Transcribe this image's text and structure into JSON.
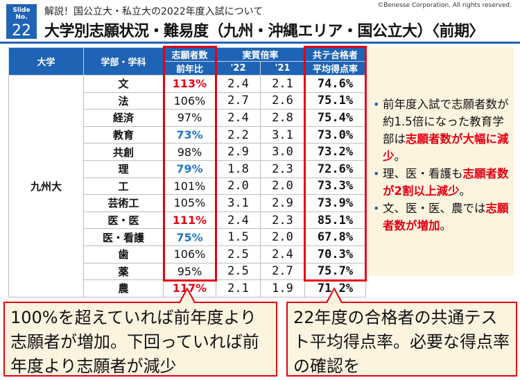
{
  "header": {
    "badge_label": "Slide No.",
    "badge_number": "22",
    "subtitle": "解説！国公立大・私立大の2022年度入試について",
    "title": "大学別志願状況・難易度（九州・沖縄エリア・国公立大）〈前期〉",
    "copyright": "©Benesse Corporation. All rights reserved.",
    "accent_color": "#1f63b5"
  },
  "table": {
    "headers": {
      "university": "大学",
      "faculty": "学部・学科",
      "applicants_top": "志願者数",
      "applicants_bottom": "前年比",
      "ratio": "実質倍率",
      "ratio_22": "'22",
      "ratio_21": "'21",
      "avg_top": "共テ合格者",
      "avg_bottom": "平均得点率"
    },
    "university": "九州大",
    "rows": [
      {
        "faculty": "文",
        "applicants": "113%",
        "style": "red",
        "r22": "2.4",
        "r21": "2.1",
        "avg": "74.6%"
      },
      {
        "faculty": "法",
        "applicants": "106%",
        "style": "",
        "r22": "2.7",
        "r21": "2.6",
        "avg": "75.1%"
      },
      {
        "faculty": "経済",
        "applicants": "97%",
        "style": "",
        "r22": "2.4",
        "r21": "2.8",
        "avg": "75.4%"
      },
      {
        "faculty": "教育",
        "applicants": "73%",
        "style": "blue",
        "r22": "2.2",
        "r21": "3.1",
        "avg": "73.0%"
      },
      {
        "faculty": "共創",
        "applicants": "98%",
        "style": "",
        "r22": "2.9",
        "r21": "3.0",
        "avg": "73.2%"
      },
      {
        "faculty": "理",
        "applicants": "79%",
        "style": "blue",
        "r22": "1.8",
        "r21": "2.3",
        "avg": "72.6%"
      },
      {
        "faculty": "工",
        "applicants": "101%",
        "style": "",
        "r22": "2.0",
        "r21": "2.0",
        "avg": "73.3%"
      },
      {
        "faculty": "芸術工",
        "applicants": "105%",
        "style": "",
        "r22": "3.1",
        "r21": "2.9",
        "avg": "73.9%"
      },
      {
        "faculty": "医・医",
        "applicants": "111%",
        "style": "red",
        "r22": "2.4",
        "r21": "2.3",
        "avg": "85.1%"
      },
      {
        "faculty": "医・看護",
        "applicants": "75%",
        "style": "blue",
        "r22": "1.5",
        "r21": "2.0",
        "avg": "67.8%"
      },
      {
        "faculty": "歯",
        "applicants": "106%",
        "style": "",
        "r22": "2.5",
        "r21": "2.4",
        "avg": "70.3%"
      },
      {
        "faculty": "薬",
        "applicants": "95%",
        "style": "",
        "r22": "2.5",
        "r21": "2.7",
        "avg": "75.7%"
      },
      {
        "faculty": "農",
        "applicants": "117%",
        "style": "red",
        "r22": "2.1",
        "r21": "1.9",
        "avg": "71.2%"
      }
    ]
  },
  "note": {
    "items": [
      {
        "text": "前年度入試で志願者数が約1.5倍になった教育学部は",
        "em": "志願者数が大幅に減少",
        "tail": "。"
      },
      {
        "text": "理、医・看護も",
        "em": "志願者数が2割以上減少",
        "tail": "。"
      },
      {
        "text": "文、医・医、農では",
        "em": "志願者数が増加",
        "tail": "。"
      }
    ]
  },
  "callouts": {
    "left": "100%を超えていれば前年度より志願者が増加。下回っていれば前年度より志願者が減少",
    "right": "22年度の合格者の共通テスト平均得点率。必要な得点率の確認を"
  }
}
